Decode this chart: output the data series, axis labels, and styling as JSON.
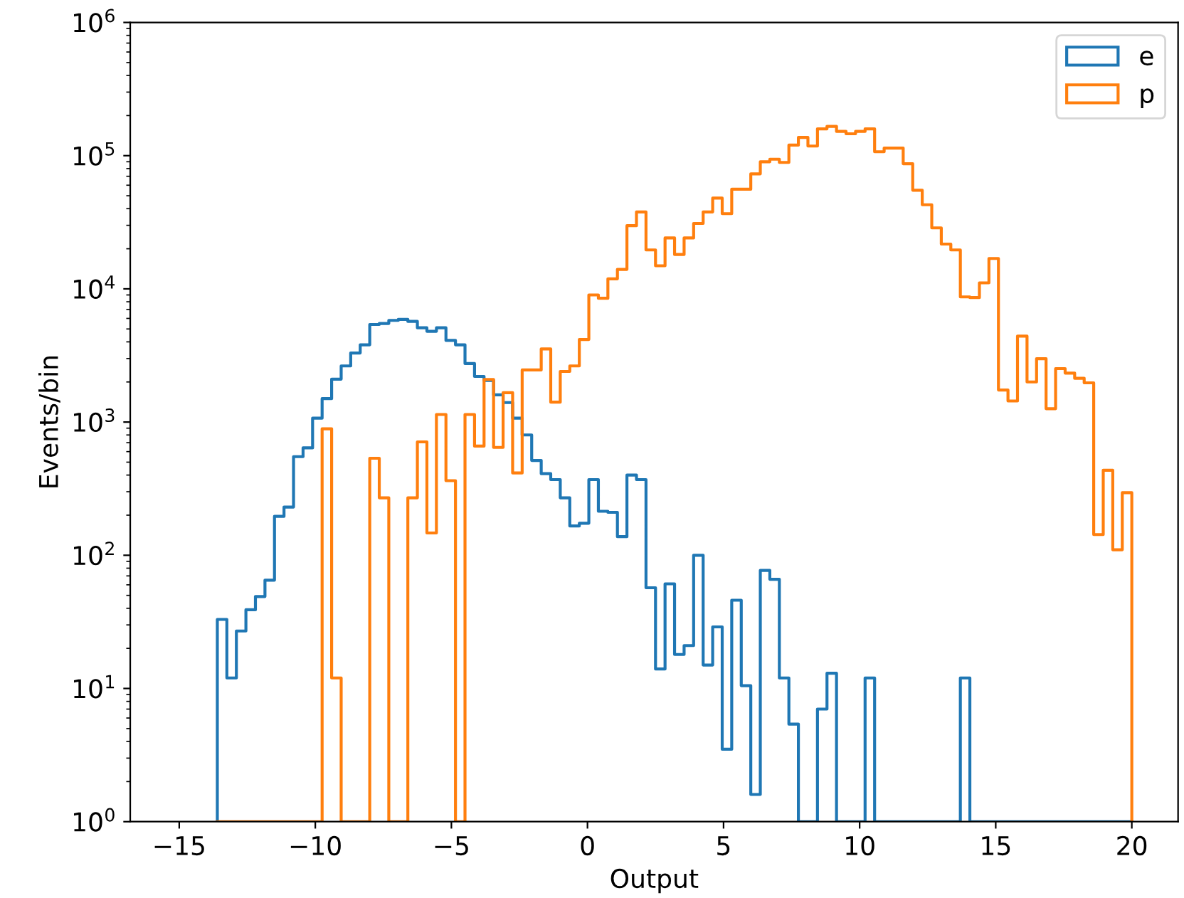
{
  "chart_data": {
    "type": "histogram",
    "xlabel": "Output",
    "ylabel": "Events/bin",
    "log": "y",
    "grid": false,
    "legend": "top right",
    "xlim": [
      -16.8,
      21.7
    ],
    "ylim": [
      1,
      1000000
    ],
    "xticks": [
      {
        "value": -15,
        "label": "−15"
      },
      {
        "value": -10,
        "label": "−10"
      },
      {
        "value": -5,
        "label": "−5"
      },
      0,
      5,
      10,
      15,
      20
    ],
    "yticks": [
      {
        "value": 1,
        "label": "10$^{0}$"
      },
      {
        "value": 10,
        "label": "10$^{1}$"
      },
      {
        "value": 100,
        "label": "10$^{2}$"
      },
      {
        "value": 1000,
        "label": "10$^{3}$"
      },
      {
        "value": 10000,
        "label": "10$^{4}$"
      },
      {
        "value": 100000,
        "label": "10$^{5}$"
      },
      {
        "value": 1000000,
        "label": "10$^{6}$"
      }
    ],
    "bins": [
      -13.6,
      -13.25,
      -12.9,
      -12.55,
      -12.2,
      -11.85,
      -11.5,
      -11.15,
      -10.8,
      -10.45,
      -10.1,
      -9.75,
      -9.4,
      -9.05,
      -8.7,
      -8.35,
      -8.0,
      -7.65,
      -7.3,
      -6.95,
      -6.6,
      -6.25,
      -5.9,
      -5.55,
      -5.2,
      -4.85,
      -4.5,
      -4.15,
      -3.8,
      -3.45,
      -3.1,
      -2.75,
      -2.4,
      -2.05,
      -1.7,
      -1.35,
      -1.0,
      -0.65,
      -0.3,
      0.05,
      0.4,
      0.75,
      1.1,
      1.45,
      1.8,
      2.15,
      2.5,
      2.85,
      3.2,
      3.55,
      3.9,
      4.25,
      4.6,
      4.95,
      5.3,
      5.65,
      6.0,
      6.35,
      6.7,
      7.05,
      7.4,
      7.75,
      8.1,
      8.45,
      8.8,
      9.15,
      9.5,
      9.85,
      10.2,
      10.55,
      10.9,
      11.25,
      11.6,
      11.95,
      12.3,
      12.65,
      13.0,
      13.35,
      13.7,
      14.05,
      14.4,
      14.75,
      15.1,
      15.45,
      15.8,
      16.15,
      16.5,
      16.85,
      17.2,
      17.55,
      17.9,
      18.25,
      18.6,
      18.95,
      19.3,
      19.65,
      20.0
    ],
    "series": [
      {
        "name": "e",
        "color": "#1f77b4",
        "values": [
          33,
          12,
          27,
          39,
          49,
          65,
          196,
          230,
          550,
          640,
          1070,
          1500,
          2100,
          2640,
          3300,
          3800,
          5400,
          5500,
          5800,
          5900,
          5700,
          5100,
          4800,
          5100,
          4100,
          3800,
          2750,
          2200,
          2050,
          1600,
          1400,
          1070,
          800,
          515,
          410,
          370,
          270,
          166,
          174,
          370,
          214,
          210,
          138,
          400,
          370,
          57,
          14,
          61,
          18,
          21,
          100,
          15,
          29,
          3.5,
          46,
          10.5,
          1.6,
          77,
          66,
          12,
          5.4,
          null,
          null,
          7,
          13,
          null,
          null,
          null,
          12,
          null,
          null,
          null,
          null,
          null,
          null,
          null,
          null,
          null,
          12,
          null,
          null,
          null,
          null,
          null,
          null,
          null,
          null,
          null,
          null,
          null,
          null,
          null,
          null,
          null,
          null,
          null
        ]
      },
      {
        "name": "p",
        "color": "#ff7f0e",
        "values": [
          null,
          null,
          null,
          null,
          null,
          null,
          null,
          null,
          null,
          null,
          null,
          890,
          12,
          null,
          null,
          null,
          535,
          270,
          null,
          null,
          270,
          710,
          147,
          1140,
          363,
          null,
          1140,
          660,
          2090,
          645,
          1660,
          415,
          2460,
          2460,
          3540,
          1410,
          2400,
          2640,
          4170,
          9000,
          8500,
          11900,
          14000,
          29800,
          37800,
          19600,
          14900,
          24100,
          18100,
          24100,
          31000,
          37800,
          48000,
          36700,
          56000,
          56000,
          73000,
          90000,
          94000,
          89000,
          120000,
          137000,
          118000,
          159000,
          166000,
          152000,
          146000,
          152000,
          159000,
          107000,
          114000,
          114000,
          87000,
          55000,
          42800,
          28700,
          21700,
          19600,
          8700,
          8600,
          11100,
          16900,
          1740,
          1440,
          4420,
          2000,
          2990,
          1260,
          2520,
          2330,
          2130,
          1970,
          143,
          435,
          110,
          295
        ]
      }
    ]
  }
}
